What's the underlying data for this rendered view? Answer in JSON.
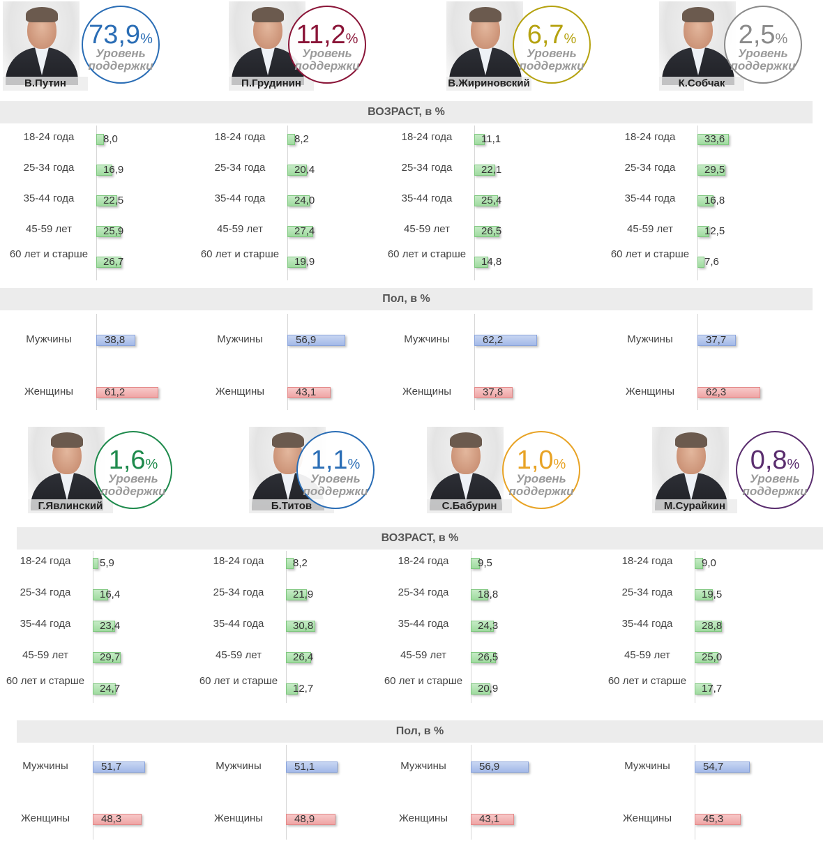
{
  "support_label": "Уровень поддержки",
  "pct_sign": "%",
  "headers": {
    "age": "ВОЗРАСТ, в %",
    "gender": "Пол, в %"
  },
  "age_groups": [
    "18-24 года",
    "25-34 года",
    "35-44 года",
    "45-59 лет",
    "60 лет и старше"
  ],
  "gender_groups": [
    "Мужчины",
    "Женщины"
  ],
  "colors": {
    "age_bar": "#a6dca6",
    "male_bar": "#a8bcea",
    "female_bar": "#f0a8a8"
  },
  "candidates": [
    {
      "name": "В.Путин",
      "support": "73,9",
      "color": "#2a6db5"
    },
    {
      "name": "П.Грудинин",
      "support": "11,2",
      "color": "#8a1538"
    },
    {
      "name": "В.Жириновский",
      "support": "6,7",
      "color": "#b5a20f"
    },
    {
      "name": "К.Собчак",
      "support": "2,5",
      "color": "#8a8a8a"
    },
    {
      "name": "Г.Явлинский",
      "support": "1,6",
      "color": "#1e8a4c"
    },
    {
      "name": "Б.Титов",
      "support": "1,1",
      "color": "#2a6db5"
    },
    {
      "name": "С.Бабурин",
      "support": "1,0",
      "color": "#e8a325"
    },
    {
      "name": "М.Сурайкин",
      "support": "0,8",
      "color": "#5a2d6e"
    }
  ],
  "chart_data": [
    {
      "type": "bar",
      "title": "В.Путин",
      "age": {
        "categories": [
          "18-24 года",
          "25-34 года",
          "35-44 года",
          "45-59 лет",
          "60 лет и старше"
        ],
        "values": [
          8.0,
          16.9,
          22.5,
          25.9,
          26.7
        ],
        "labels": [
          "8,0",
          "16,9",
          "22,5",
          "25,9",
          "26,7"
        ]
      },
      "gender": {
        "categories": [
          "Мужчины",
          "Женщины"
        ],
        "values": [
          38.8,
          61.2
        ],
        "labels": [
          "38,8",
          "61,2"
        ]
      }
    },
    {
      "type": "bar",
      "title": "П.Грудинин",
      "age": {
        "categories": [
          "18-24 года",
          "25-34 года",
          "35-44 года",
          "45-59 лет",
          "60 лет и старше"
        ],
        "values": [
          8.2,
          20.4,
          24.0,
          27.4,
          19.9
        ],
        "labels": [
          "8,2",
          "20,4",
          "24,0",
          "27,4",
          "19,9"
        ]
      },
      "gender": {
        "categories": [
          "Мужчины",
          "Женщины"
        ],
        "values": [
          56.9,
          43.1
        ],
        "labels": [
          "56,9",
          "43,1"
        ]
      }
    },
    {
      "type": "bar",
      "title": "В.Жириновский",
      "age": {
        "categories": [
          "18-24 года",
          "25-34 года",
          "35-44 года",
          "45-59 лет",
          "60 лет и старше"
        ],
        "values": [
          11.1,
          22.1,
          25.4,
          26.5,
          14.8
        ],
        "labels": [
          "11,1",
          "22,1",
          "25,4",
          "26,5",
          "14,8"
        ]
      },
      "gender": {
        "categories": [
          "Мужчины",
          "Женщины"
        ],
        "values": [
          62.2,
          37.8
        ],
        "labels": [
          "62,2",
          "37,8"
        ]
      }
    },
    {
      "type": "bar",
      "title": "К.Собчак",
      "age": {
        "categories": [
          "18-24 года",
          "25-34 года",
          "35-44 года",
          "45-59 лет",
          "60 лет и старше"
        ],
        "values": [
          33.6,
          29.5,
          16.8,
          12.5,
          7.6
        ],
        "labels": [
          "33,6",
          "29,5",
          "16,8",
          "12,5",
          "7,6"
        ]
      },
      "gender": {
        "categories": [
          "Мужчины",
          "Женщины"
        ],
        "values": [
          37.7,
          62.3
        ],
        "labels": [
          "37,7",
          "62,3"
        ]
      }
    },
    {
      "type": "bar",
      "title": "Г.Явлинский",
      "age": {
        "categories": [
          "18-24 года",
          "25-34 года",
          "35-44 года",
          "45-59 лет",
          "60 лет и старше"
        ],
        "values": [
          5.9,
          16.4,
          23.4,
          29.7,
          24.7
        ],
        "labels": [
          "5,9",
          "16,4",
          "23,4",
          "29,7",
          "24,7"
        ]
      },
      "gender": {
        "categories": [
          "Мужчины",
          "Женщины"
        ],
        "values": [
          51.7,
          48.3
        ],
        "labels": [
          "51,7",
          "48,3"
        ]
      }
    },
    {
      "type": "bar",
      "title": "Б.Титов",
      "age": {
        "categories": [
          "18-24 года",
          "25-34 года",
          "35-44 года",
          "45-59 лет",
          "60 лет и старше"
        ],
        "values": [
          8.2,
          21.9,
          30.8,
          26.4,
          12.7
        ],
        "labels": [
          "8,2",
          "21,9",
          "30,8",
          "26,4",
          "12,7"
        ]
      },
      "gender": {
        "categories": [
          "Мужчины",
          "Женщины"
        ],
        "values": [
          51.1,
          48.9
        ],
        "labels": [
          "51,1",
          "48,9"
        ]
      }
    },
    {
      "type": "bar",
      "title": "С.Бабурин",
      "age": {
        "categories": [
          "18-24 года",
          "25-34 года",
          "35-44 года",
          "45-59 лет",
          "60 лет и старше"
        ],
        "values": [
          9.5,
          18.8,
          24.3,
          26.5,
          20.9
        ],
        "labels": [
          "9,5",
          "18,8",
          "24,3",
          "26,5",
          "20,9"
        ]
      },
      "gender": {
        "categories": [
          "Мужчины",
          "Женщины"
        ],
        "values": [
          56.9,
          43.1
        ],
        "labels": [
          "56,9",
          "43,1"
        ]
      }
    },
    {
      "type": "bar",
      "title": "М.Сурайкин",
      "age": {
        "categories": [
          "18-24 года",
          "25-34 года",
          "35-44 года",
          "45-59 лет",
          "60 лет и старше"
        ],
        "values": [
          9.0,
          19.5,
          28.8,
          25.0,
          17.7
        ],
        "labels": [
          "9,0",
          "19,5",
          "28,8",
          "25,0",
          "17,7"
        ]
      },
      "gender": {
        "categories": [
          "Мужчины",
          "Женщины"
        ],
        "values": [
          54.7,
          45.3
        ],
        "labels": [
          "54,7",
          "45,3"
        ]
      }
    }
  ]
}
